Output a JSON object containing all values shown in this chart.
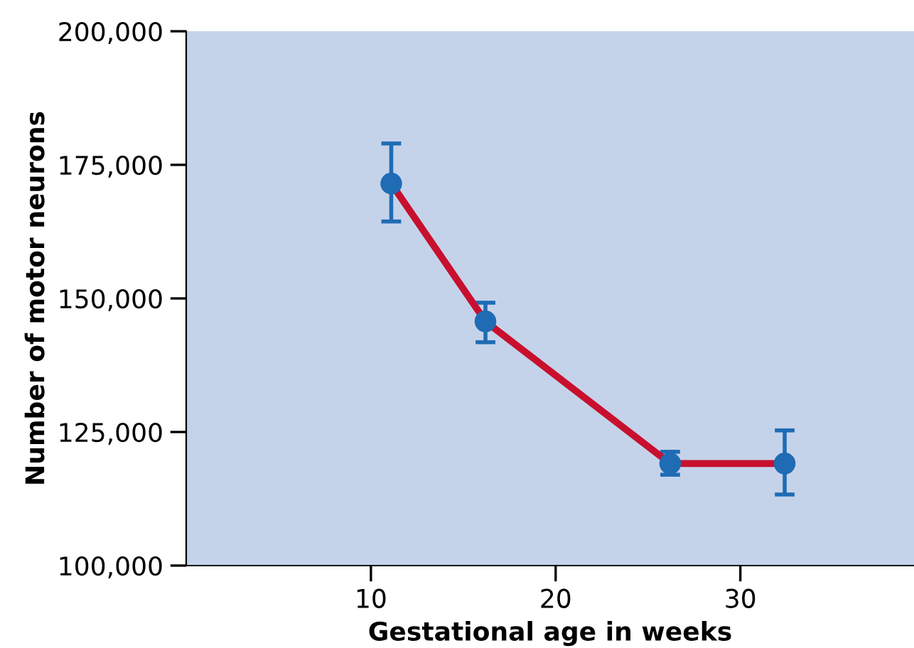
{
  "chart_data": {
    "type": "line",
    "xlabel": "Gestational age in weeks",
    "ylabel": "Number of motor neurons",
    "x": [
      11.1,
      16.2,
      26.2,
      32.4
    ],
    "series": [
      {
        "color": "#c8102e",
        "values": [
          171500,
          145700,
          119100,
          119100
        ],
        "errors": [
          [
            164400,
            179000
          ],
          [
            141800,
            149200
          ],
          [
            117000,
            121300
          ],
          [
            113300,
            125300
          ]
        ]
      }
    ],
    "xlim": [
      0,
      39.4
    ],
    "xticks": [
      10,
      20,
      30
    ],
    "ylim": [
      100000,
      200000
    ],
    "yticks": [
      {
        "value": 100000,
        "label": "100,000"
      },
      {
        "value": 125000,
        "label": "125,000"
      },
      {
        "value": 150000,
        "label": "150,000"
      },
      {
        "value": 175000,
        "label": "175,000"
      },
      {
        "value": 200000,
        "label": "200,000"
      }
    ],
    "marker": "circle",
    "line_style": "solid",
    "grid": false,
    "legend": false
  }
}
